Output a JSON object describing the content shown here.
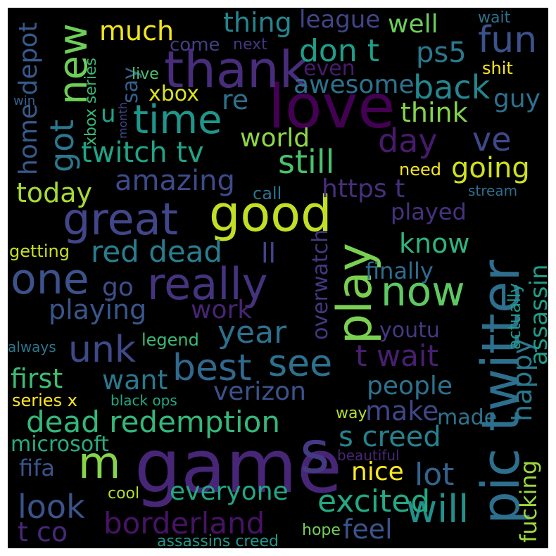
{
  "background": "#000000",
  "words": [
    {
      "text": "game",
      "color": "#482677"
    },
    {
      "text": "love",
      "color": "#440154"
    },
    {
      "text": "thank",
      "color": "#472d7b"
    },
    {
      "text": "good",
      "color": "#c2df23"
    },
    {
      "text": "s",
      "color": "#443a83"
    },
    {
      "text": "pic twitter",
      "color": "#2e6f8e"
    },
    {
      "text": "play",
      "color": "#7ad151"
    },
    {
      "text": "great",
      "color": "#404688"
    },
    {
      "text": "really",
      "color": "#46337e"
    },
    {
      "text": "one",
      "color": "#3b528b"
    },
    {
      "text": "now",
      "color": "#5ec962"
    },
    {
      "text": "new",
      "color": "#6ece58"
    },
    {
      "text": "time",
      "color": "#1f968b"
    },
    {
      "text": "best",
      "color": "#31688e"
    },
    {
      "text": "see",
      "color": "#2c728e"
    },
    {
      "text": "m",
      "color": "#86d549"
    },
    {
      "text": "will",
      "color": "#21918c"
    },
    {
      "text": "fun",
      "color": "#3b528b"
    },
    {
      "text": "unk",
      "color": "#3e4989"
    },
    {
      "text": "dead redemption",
      "color": "#35b779"
    },
    {
      "text": "borderland",
      "color": "#471365"
    },
    {
      "text": "red dead",
      "color": "#287d8e"
    },
    {
      "text": "still",
      "color": "#4ac16d"
    },
    {
      "text": "twitch tv",
      "color": "#20a486"
    },
    {
      "text": "day",
      "color": "#481a6c"
    },
    {
      "text": "ve",
      "color": "#3e4989"
    },
    {
      "text": "back",
      "color": "#24868e"
    },
    {
      "text": "don t",
      "color": "#1f9e89"
    },
    {
      "text": "ps5",
      "color": "#2a788e"
    },
    {
      "text": "got",
      "color": "#2a788e"
    },
    {
      "text": "look",
      "color": "#3b528b"
    },
    {
      "text": "excited",
      "color": "#23a983"
    },
    {
      "text": "t wait",
      "color": "#481f70"
    },
    {
      "text": "s creed",
      "color": "#26828e"
    },
    {
      "text": "year",
      "color": "#2d708e"
    },
    {
      "text": "going",
      "color": "#d0e11c"
    },
    {
      "text": "https t",
      "color": "#472f7d"
    },
    {
      "text": "amazing",
      "color": "#3e4a89"
    },
    {
      "text": "thing",
      "color": "#25858e"
    },
    {
      "text": "much",
      "color": "#f1e51d"
    },
    {
      "text": "league",
      "color": "#414487"
    },
    {
      "text": "well",
      "color": "#6ccd5a"
    },
    {
      "text": "awesome",
      "color": "#2c728e"
    },
    {
      "text": "think",
      "color": "#84d44b"
    },
    {
      "text": "today",
      "color": "#a5db36"
    },
    {
      "text": "world",
      "color": "#8fd744"
    },
    {
      "text": "playing",
      "color": "#39568c"
    },
    {
      "text": "work",
      "color": "#482475"
    },
    {
      "text": "verizon",
      "color": "#3b528b"
    },
    {
      "text": "want",
      "color": "#2a788e"
    },
    {
      "text": "first",
      "color": "#3dbc74"
    },
    {
      "text": "people",
      "color": "#2c728e"
    },
    {
      "text": "make",
      "color": "#3f4788"
    },
    {
      "text": "microsoft",
      "color": "#27ad81"
    },
    {
      "text": "nice",
      "color": "#fde725"
    },
    {
      "text": "lot",
      "color": "#33638d"
    },
    {
      "text": "everyone",
      "color": "#22a785"
    },
    {
      "text": "feel",
      "color": "#3a548c"
    },
    {
      "text": "t co",
      "color": "#482878"
    },
    {
      "text": "guy",
      "color": "#2d708e"
    },
    {
      "text": "re",
      "color": "#2c718e"
    },
    {
      "text": "xbox",
      "color": "#dde318"
    },
    {
      "text": "happy",
      "color": "#2a788e"
    },
    {
      "text": "assassin",
      "color": "#1f9e89"
    },
    {
      "text": "fucking",
      "color": "#9bd93c"
    },
    {
      "text": "know",
      "color": "#2fb47c"
    },
    {
      "text": "finally",
      "color": "#2f6c8e"
    },
    {
      "text": "youtu",
      "color": "#443983"
    },
    {
      "text": "overwatch",
      "color": "#453781"
    },
    {
      "text": "played",
      "color": "#46327e"
    },
    {
      "text": "ll",
      "color": "#404588"
    },
    {
      "text": "go",
      "color": "#3d4e8a"
    },
    {
      "text": "home depot",
      "color": "#375a8c"
    },
    {
      "text": "say",
      "color": "#355f8d"
    },
    {
      "text": "u",
      "color": "#20a386"
    },
    {
      "text": "xbox series",
      "color": "#38b977"
    },
    {
      "text": "come",
      "color": "#433e85"
    },
    {
      "text": "next",
      "color": "#453581"
    },
    {
      "text": "even",
      "color": "#481b6d"
    },
    {
      "text": "getting",
      "color": "#c8e020"
    },
    {
      "text": "legend",
      "color": "#3aba76"
    },
    {
      "text": "series x",
      "color": "#fde725"
    },
    {
      "text": "black ops",
      "color": "#24aa83"
    },
    {
      "text": "fifa",
      "color": "#3a548c"
    },
    {
      "text": "cool",
      "color": "#b5de2b"
    },
    {
      "text": "made",
      "color": "#2c738e"
    },
    {
      "text": "beautiful",
      "color": "#482777"
    },
    {
      "text": "way",
      "color": "#b8de29"
    },
    {
      "text": "hope",
      "color": "#73d056"
    },
    {
      "text": "assassins creed",
      "color": "#1f9a8a"
    },
    {
      "text": "actually",
      "color": "#1e9c89"
    },
    {
      "text": "need",
      "color": "#f6e620"
    },
    {
      "text": "call",
      "color": "#2b758e"
    },
    {
      "text": "stream",
      "color": "#2e6e8e"
    },
    {
      "text": "shit",
      "color": "#f8e621"
    },
    {
      "text": "wait",
      "color": "#2c728e"
    },
    {
      "text": "live",
      "color": "#4ec36b"
    },
    {
      "text": "month",
      "color": "#3f4889"
    },
    {
      "text": "win",
      "color": "#34608d"
    },
    {
      "text": "always",
      "color": "#2a788e"
    }
  ]
}
